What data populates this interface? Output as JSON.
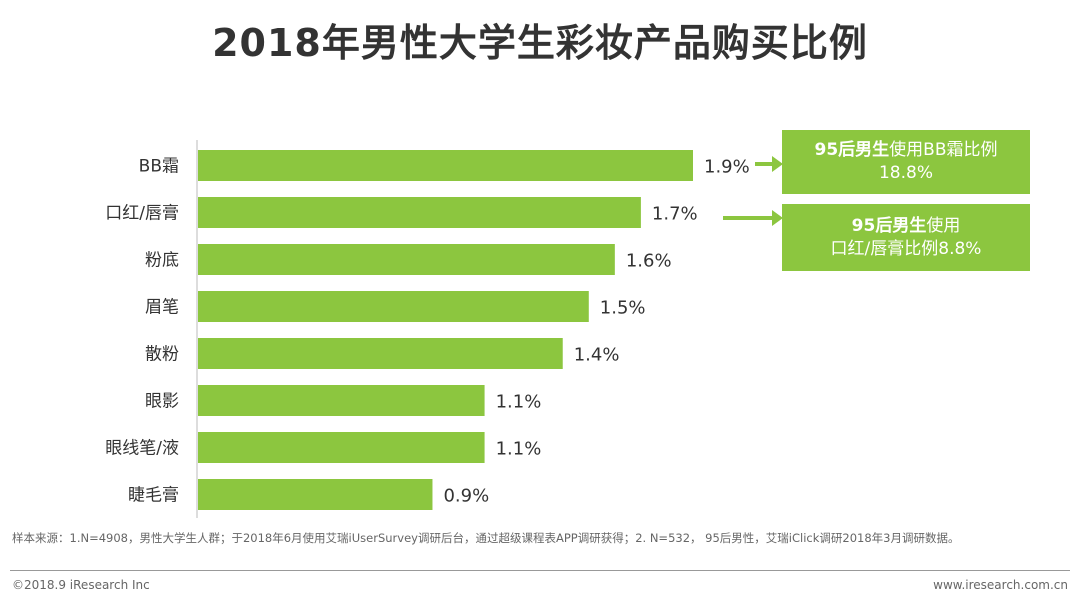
{
  "title": "2018年男性大学生彩妆产品购买比例",
  "chart_data": {
    "type": "bar",
    "orientation": "horizontal",
    "title": "2018年男性大学生彩妆产品购买比例",
    "unit": "%",
    "categories": [
      "BB霜",
      "口红/唇膏",
      "粉底",
      "眉笔",
      "散粉",
      "眼影",
      "眼线笔/液",
      "睫毛膏"
    ],
    "values": [
      1.9,
      1.7,
      1.6,
      1.5,
      1.4,
      1.1,
      1.1,
      0.9
    ],
    "labels": [
      "1.9%",
      "1.7%",
      "1.6%",
      "1.5%",
      "1.4%",
      "1.1%",
      "1.1%",
      "0.9%"
    ],
    "xlim": [
      0,
      1.9
    ],
    "bar_color": "#8cc63f"
  },
  "callouts": [
    {
      "highlight": "95后男生",
      "line1_rest": "使用BB霜比例",
      "line2": "18.8%"
    },
    {
      "highlight": "95后男生",
      "line1_rest": "使用",
      "line2": "口红/唇膏比例8.8%"
    }
  ],
  "source_note": "样本来源：1.N=4908，男性大学生人群；于2018年6月使用艾瑞iUserSurvey调研后台，通过超级课程表APP调研获得；2. N=532，  95后男性，艾瑞iClick调研2018年3月调研数据。",
  "footer": {
    "copyright": "©2018.9 iResearch Inc",
    "website": "www.iresearch.com.cn"
  },
  "colors": {
    "accent": "#8cc63f",
    "title": "#333333",
    "axis": "#bbbbbb"
  }
}
